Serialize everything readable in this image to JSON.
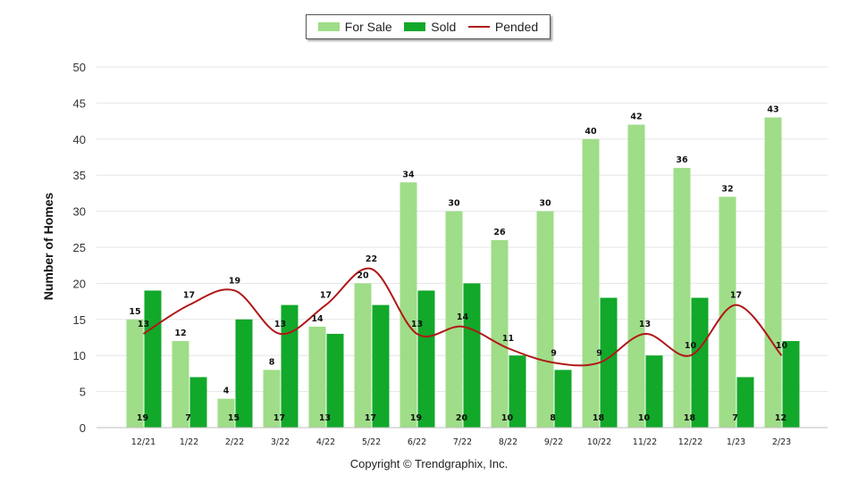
{
  "legend": {
    "for_sale": "For Sale",
    "sold": "Sold",
    "pended": "Pended"
  },
  "colors": {
    "for_sale": "#9fdd88",
    "sold": "#12a82a",
    "pended": "#b01818",
    "grid": "#e6e6e6"
  },
  "copyright": "Copyright © Trendgraphix, Inc.",
  "chart_data": {
    "type": "bar",
    "ylabel": "Number of Homes",
    "xlabel": "",
    "ylim": [
      0,
      50
    ],
    "yticks": [
      0,
      5,
      10,
      15,
      20,
      25,
      30,
      35,
      40,
      45,
      50
    ],
    "grid": true,
    "legend_position": "top-center",
    "categories": [
      "12/21",
      "1/22",
      "2/22",
      "3/22",
      "4/22",
      "5/22",
      "6/22",
      "7/22",
      "8/22",
      "9/22",
      "10/22",
      "11/22",
      "12/22",
      "1/23",
      "2/23"
    ],
    "series": [
      {
        "name": "For Sale",
        "type": "bar",
        "values": [
          15,
          12,
          4,
          8,
          14,
          20,
          34,
          30,
          26,
          30,
          40,
          42,
          36,
          32,
          43
        ]
      },
      {
        "name": "Sold",
        "type": "bar",
        "values": [
          19,
          7,
          15,
          17,
          13,
          17,
          19,
          20,
          10,
          8,
          18,
          10,
          18,
          7,
          12
        ]
      },
      {
        "name": "Pended",
        "type": "line",
        "values": [
          13,
          17,
          19,
          13,
          17,
          22,
          13,
          14,
          11,
          9,
          9,
          13,
          10,
          17,
          10
        ]
      }
    ]
  }
}
